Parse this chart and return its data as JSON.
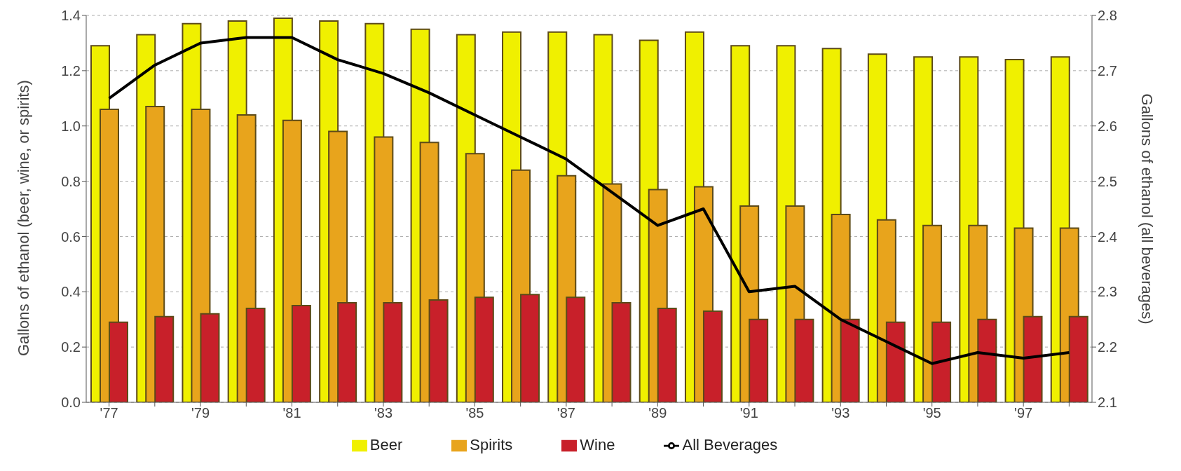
{
  "chart_data": {
    "type": "bar",
    "categories": [
      "'77",
      null,
      "'79",
      null,
      "'81",
      null,
      "'83",
      null,
      "'85",
      null,
      "'87",
      null,
      "'89",
      null,
      "'91",
      null,
      "'93",
      null,
      "'95",
      null,
      "'97",
      null
    ],
    "ylabel": "Gallons of ethanol (beer, wine, or spirits)",
    "y2label": "Gallons of ethanol (all beverages)",
    "ylim": [
      0,
      1.4
    ],
    "yticks": [
      {
        "value": 0,
        "label": "0.0"
      },
      0.2,
      0.4,
      0.6,
      0.8,
      {
        "value": 1,
        "label": "1.0"
      },
      1.2,
      1.4
    ],
    "y2lim": [
      2.1,
      2.8
    ],
    "y2ticks": [
      2.1,
      2.2,
      2.3,
      2.4,
      2.5,
      2.6,
      2.7,
      2.8
    ],
    "grid": "y",
    "legend": "bottom",
    "series": [
      {
        "name": "Beer",
        "color": "#f0f000",
        "values": [
          1.29,
          1.33,
          1.37,
          1.38,
          1.39,
          1.38,
          1.37,
          1.35,
          1.33,
          1.34,
          1.34,
          1.33,
          1.31,
          1.34,
          1.29,
          1.29,
          1.28,
          1.26,
          1.25,
          1.25,
          1.24,
          1.25
        ]
      },
      {
        "name": "Spirits",
        "color": "#e8a41c",
        "values": [
          1.06,
          1.07,
          1.06,
          1.04,
          1.02,
          0.98,
          0.96,
          0.94,
          0.9,
          0.84,
          0.82,
          0.79,
          0.77,
          0.78,
          0.71,
          0.71,
          0.68,
          0.66,
          0.64,
          0.64,
          0.63,
          0.63
        ]
      },
      {
        "name": "Wine",
        "color": "#c8202a",
        "values": [
          0.29,
          0.31,
          0.32,
          0.34,
          0.35,
          0.36,
          0.36,
          0.37,
          0.38,
          0.39,
          0.38,
          0.36,
          0.34,
          0.33,
          0.3,
          0.3,
          0.3,
          0.29,
          0.29,
          0.3,
          0.31,
          0.31
        ]
      },
      {
        "name": "All Beverages",
        "type": "line",
        "axis": "y2",
        "color": "#000000",
        "values": [
          2.65,
          2.71,
          2.75,
          2.76,
          2.76,
          2.72,
          2.695,
          2.66,
          2.62,
          2.58,
          2.54,
          2.48,
          2.42,
          2.45,
          2.3,
          2.31,
          2.25,
          2.21,
          2.17,
          2.19,
          2.18,
          2.19
        ]
      }
    ]
  }
}
